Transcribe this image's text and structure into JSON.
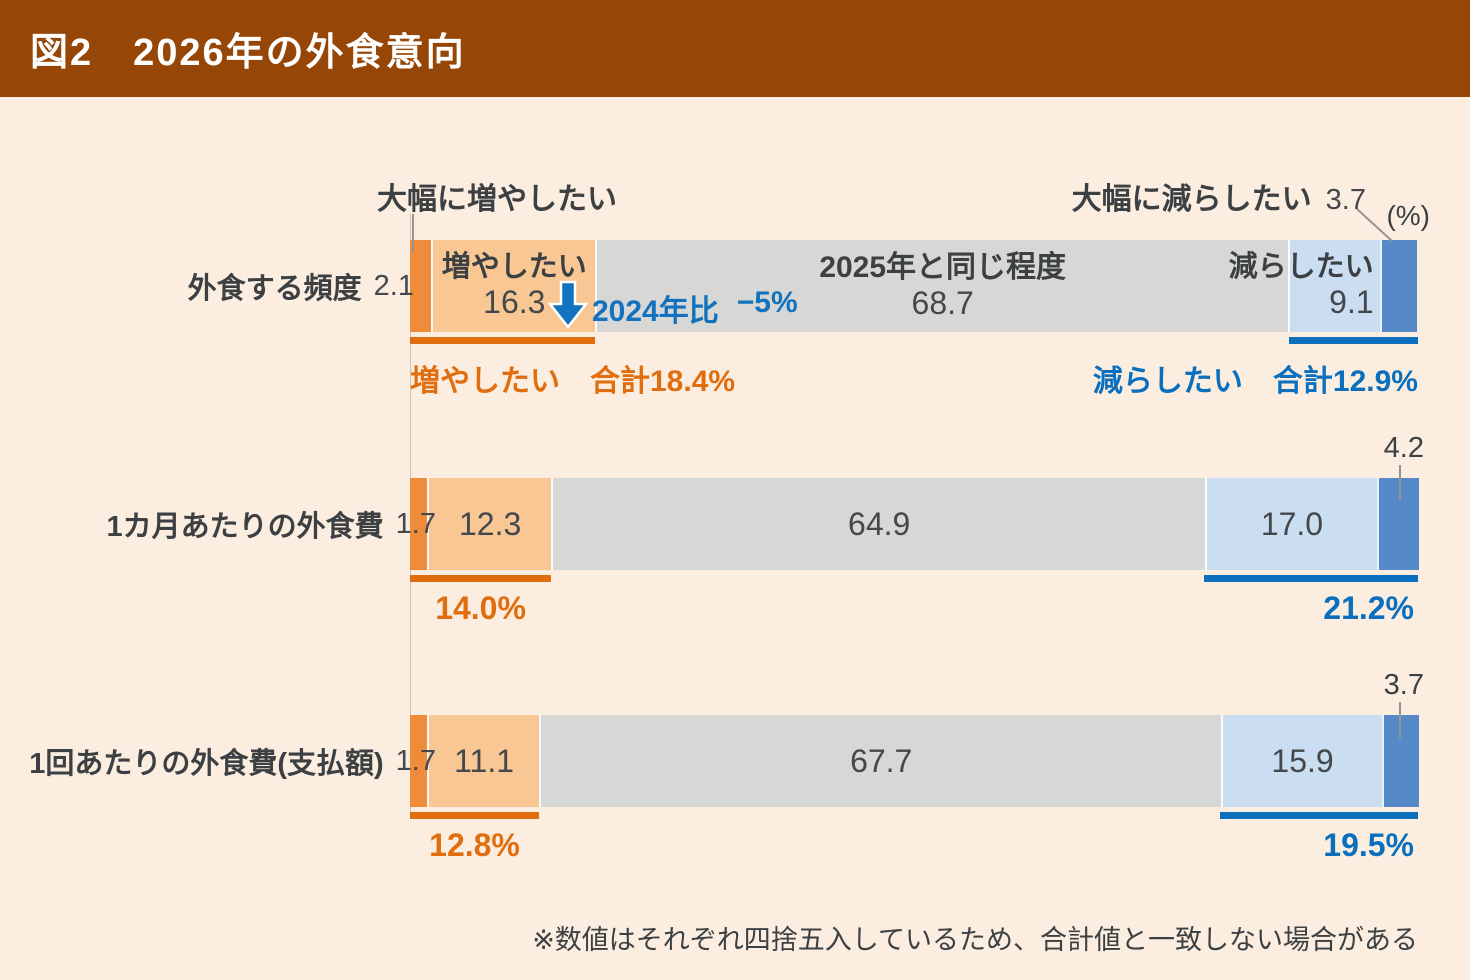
{
  "header": {
    "title": "図2　2026年の外食意向"
  },
  "unit_label": "(%)",
  "note": "※数値はそれぞれ四捨五入しているため、合計値と一致しない場合がある",
  "callouts": {
    "increase_much": "大幅に増やしたい",
    "decrease_much": "大幅に減らしたい"
  },
  "comparison": {
    "label": "2024年比",
    "value": "−5%"
  },
  "colors": {
    "background": "#FBEEE1",
    "header_bar": "#964606",
    "accent_increase": "#E06E0E",
    "accent_decrease": "#0B6FBE",
    "comparison_blue": "#1272BE",
    "text_dark": "#3C4043"
  },
  "chart_data": {
    "type": "bar",
    "stacked": true,
    "orientation": "horizontal",
    "unit": "%",
    "xlim": [
      0,
      100
    ],
    "title": "図2　2026年の外食意向",
    "categories": [
      "外食する頻度",
      "1カ月あたりの外食費",
      "1回あたりの外食費(支払額)"
    ],
    "series": [
      {
        "name": "大幅に増やしたい",
        "color": "#EF8C3B",
        "values": [
          2.1,
          1.7,
          1.7
        ],
        "value_labels": [
          "2.1",
          "1.7",
          "1.7"
        ]
      },
      {
        "name": "増やしたい",
        "color": "#F8C794",
        "values": [
          16.3,
          12.3,
          11.1
        ],
        "value_labels": [
          "16.3",
          "12.3",
          "11.1"
        ]
      },
      {
        "name": "2025年と同じ程度",
        "color": "#D7D7D5",
        "values": [
          68.7,
          64.9,
          67.7
        ],
        "value_labels": [
          "68.7",
          "64.9",
          "67.7"
        ]
      },
      {
        "name": "減らしたい",
        "color": "#CBDDF1",
        "values": [
          9.1,
          17.0,
          15.9
        ],
        "value_labels": [
          "9.1",
          "17.0",
          "15.9"
        ]
      },
      {
        "name": "大幅に減らしたい",
        "color": "#5589C7",
        "values": [
          3.7,
          4.2,
          3.7
        ],
        "value_labels": [
          "3.7",
          "4.2",
          "3.7"
        ]
      }
    ],
    "increase_totals": [
      "増やしたい　合計18.4%",
      "14.0%",
      "12.8%"
    ],
    "decrease_totals": [
      "減らしたい　合計12.9%",
      "21.2%",
      "19.5%"
    ]
  }
}
